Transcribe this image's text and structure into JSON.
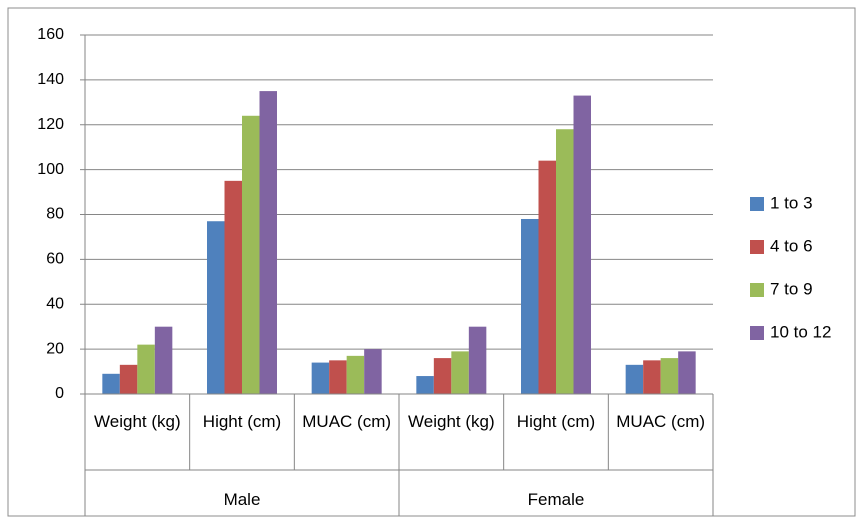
{
  "chart_data": {
    "type": "bar",
    "categories": [
      "Weight (kg)",
      "Hight (cm)",
      "MUAC (cm)",
      "Weight (kg)",
      "Hight (cm)",
      "MUAC (cm)"
    ],
    "category_groups": [
      "Male",
      "Female"
    ],
    "series": [
      {
        "name": "1 to 3",
        "color": "#4f81bd",
        "values": [
          9,
          77,
          14,
          8,
          78,
          13
        ]
      },
      {
        "name": "4 to 6",
        "color": "#c0504d",
        "values": [
          13,
          95,
          15,
          16,
          104,
          15
        ]
      },
      {
        "name": "7 to 9",
        "color": "#9bbb59",
        "values": [
          22,
          124,
          17,
          19,
          118,
          16
        ]
      },
      {
        "name": "10 to 12",
        "color": "#8064a2",
        "values": [
          30,
          135,
          20,
          30,
          133,
          19
        ]
      }
    ],
    "ylim": [
      0,
      160
    ],
    "yticks": [
      0,
      20,
      40,
      60,
      80,
      100,
      120,
      140,
      160
    ],
    "grid": true,
    "legend": "right"
  }
}
